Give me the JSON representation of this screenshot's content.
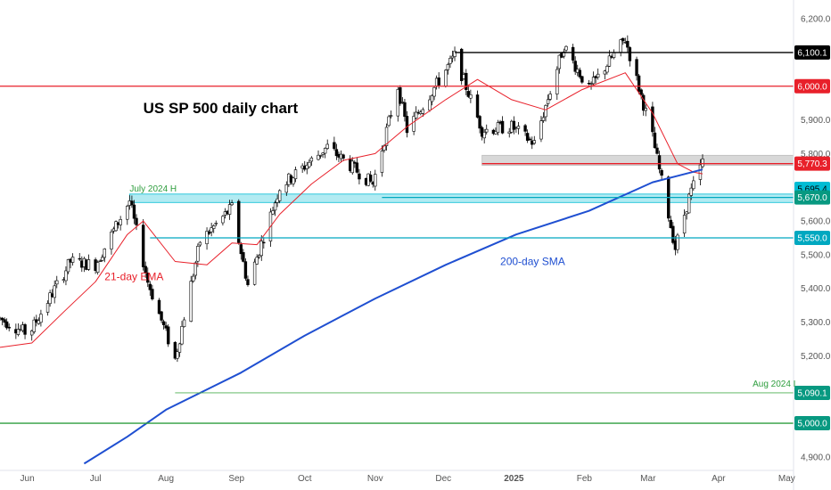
{
  "chart_data": {
    "type": "candlestick",
    "title": "US SP 500 daily chart",
    "xlabel": "",
    "ylabel": "",
    "ylim": [
      4860,
      6240
    ],
    "x_range": [
      "2024-05-20",
      "2025-05-04"
    ],
    "grid": false,
    "y_ticks": [
      {
        "value": 6200,
        "label": "6,200.0"
      },
      {
        "value": 6100,
        "label": "6,100.0"
      },
      {
        "value": 6000,
        "label": "6,000.0"
      },
      {
        "value": 5900,
        "label": "5,900.0"
      },
      {
        "value": 5800,
        "label": "5,800.0"
      },
      {
        "value": 5700,
        "label": "5,700.0"
      },
      {
        "value": 5600,
        "label": "5,600.0"
      },
      {
        "value": 5500,
        "label": "5,500.0"
      },
      {
        "value": 5400,
        "label": "5,400.0"
      },
      {
        "value": 5300,
        "label": "5,300.0"
      },
      {
        "value": 5200,
        "label": "5,200.0"
      },
      {
        "value": 5100,
        "label": "5,100.0"
      },
      {
        "value": 5000,
        "label": "5,000.0"
      },
      {
        "value": 4900,
        "label": "4,900.0"
      }
    ],
    "x_ticks": [
      {
        "date": "2024-06-01",
        "label": "Jun",
        "bold": false
      },
      {
        "date": "2024-07-01",
        "label": "Jul",
        "bold": false
      },
      {
        "date": "2024-08-01",
        "label": "Aug",
        "bold": false
      },
      {
        "date": "2024-09-01",
        "label": "Sep",
        "bold": false
      },
      {
        "date": "2024-10-01",
        "label": "Oct",
        "bold": false
      },
      {
        "date": "2024-11-01",
        "label": "Nov",
        "bold": false
      },
      {
        "date": "2024-12-01",
        "label": "Dec",
        "bold": false
      },
      {
        "date": "2025-01-01",
        "label": "2025",
        "bold": true
      },
      {
        "date": "2025-02-01",
        "label": "Feb",
        "bold": false
      },
      {
        "date": "2025-03-01",
        "label": "Mar",
        "bold": false
      },
      {
        "date": "2025-04-01",
        "label": "Apr",
        "bold": false
      },
      {
        "date": "2025-05-01",
        "label": "May",
        "bold": false
      }
    ],
    "levels": [
      {
        "value": 6100.1,
        "label": "6,100.1",
        "color": "#000000",
        "from": "2024-12-06",
        "badge_bg": "#000000",
        "badge_fg": "#ffffff"
      },
      {
        "value": 6000.0,
        "label": "6,000.0",
        "color": "#e8202a",
        "from": "2024-05-20",
        "badge_bg": "#e8202a",
        "badge_fg": "#ffffff"
      },
      {
        "value": 5770.3,
        "label": "5,770.3",
        "color": "#e8202a",
        "from": "2024-12-18",
        "badge_bg": "#e8202a",
        "badge_fg": "#ffffff"
      },
      {
        "value": 5695.4,
        "label": "5,695.4",
        "color": "#1a2c80",
        "from": null,
        "badge_bg": "#00bcd4",
        "badge_fg": "#000000"
      },
      {
        "value": 5670.0,
        "label": "5,670.0",
        "color": "#00a8c0",
        "from": "2024-11-04",
        "badge_bg": "#089981",
        "badge_fg": "#ffffff"
      },
      {
        "value": 5550.0,
        "label": "5,550.0",
        "color": "#00a8c0",
        "from": "2024-07-25",
        "badge_bg": "#00a8c0",
        "badge_fg": "#ffffff"
      },
      {
        "value": 5090.1,
        "label": "5,090.1",
        "color": "#4caf50",
        "from": "2024-08-05",
        "badge_bg": "#089981",
        "badge_fg": "#ffffff",
        "thin": true
      },
      {
        "value": 5000.0,
        "label": "5,000.0",
        "color": "#2e9e3e",
        "from": "2024-05-20",
        "badge_bg": "#089981",
        "badge_fg": "#ffffff"
      }
    ],
    "zones": [
      {
        "from_date": "2024-07-16",
        "y1": 5655,
        "y2": 5680,
        "fill": "#b2ebf2",
        "stroke": "#00bcd4"
      },
      {
        "from_date": "2024-12-18",
        "y1": 5765,
        "y2": 5795,
        "fill": "#d8d8d8",
        "stroke": "#bdbdbd"
      }
    ],
    "annotations": [
      {
        "text": "US SP 500 daily chart",
        "date": "2024-07-22",
        "value": 5920,
        "color": "#000000",
        "size": 17,
        "bold": true
      },
      {
        "text": "July 2024 H",
        "date": "2024-07-16",
        "value": 5688,
        "color": "#2e9e3e",
        "size": 10,
        "bold": false
      },
      {
        "text": "21-day EMA",
        "date": "2024-07-05",
        "value": 5425,
        "color": "#e8202a",
        "size": 12,
        "bold": false
      },
      {
        "text": "200-day SMA",
        "date": "2024-12-26",
        "value": 5470,
        "color": "#1f4fd1",
        "size": 12,
        "bold": false
      },
      {
        "text": "Aug 2024 L",
        "date": "2025-04-16",
        "value": 5108,
        "color": "#2e9e3e",
        "size": 10,
        "bold": false
      }
    ],
    "sma200_points": [
      [
        "2024-06-26",
        4880
      ],
      [
        "2024-07-15",
        4960
      ],
      [
        "2024-08-01",
        5040
      ],
      [
        "2024-09-03",
        5150
      ],
      [
        "2024-10-01",
        5260
      ],
      [
        "2024-11-01",
        5370
      ],
      [
        "2024-12-02",
        5470
      ],
      [
        "2025-01-02",
        5560
      ],
      [
        "2025-02-03",
        5630
      ],
      [
        "2025-03-03",
        5715
      ],
      [
        "2025-03-25",
        5753
      ]
    ],
    "ema21_points": [
      [
        "2024-05-20",
        5225
      ],
      [
        "2024-06-03",
        5238
      ],
      [
        "2024-06-17",
        5330
      ],
      [
        "2024-07-01",
        5420
      ],
      [
        "2024-07-15",
        5560
      ],
      [
        "2024-07-22",
        5600
      ],
      [
        "2024-08-05",
        5480
      ],
      [
        "2024-08-19",
        5470
      ],
      [
        "2024-08-30",
        5535
      ],
      [
        "2024-09-10",
        5530
      ],
      [
        "2024-09-20",
        5620
      ],
      [
        "2024-10-04",
        5710
      ],
      [
        "2024-10-18",
        5780
      ],
      [
        "2024-11-01",
        5800
      ],
      [
        "2024-11-15",
        5880
      ],
      [
        "2024-12-02",
        5960
      ],
      [
        "2024-12-16",
        6020
      ],
      [
        "2024-12-31",
        5960
      ],
      [
        "2025-01-15",
        5930
      ],
      [
        "2025-01-31",
        5990
      ],
      [
        "2025-02-19",
        6040
      ],
      [
        "2025-03-03",
        5920
      ],
      [
        "2025-03-14",
        5770
      ],
      [
        "2025-03-21",
        5745
      ],
      [
        "2025-03-25",
        5740
      ]
    ],
    "price_path": [
      [
        "2024-05-20",
        5310
      ],
      [
        "2024-05-31",
        5270
      ],
      [
        "2024-06-03",
        5280
      ],
      [
        "2024-06-20",
        5480
      ],
      [
        "2024-07-01",
        5470
      ],
      [
        "2024-07-16",
        5660
      ],
      [
        "2024-07-24",
        5420
      ],
      [
        "2024-08-05",
        5190
      ],
      [
        "2024-08-16",
        5540
      ],
      [
        "2024-08-30",
        5640
      ],
      [
        "2024-09-06",
        5410
      ],
      [
        "2024-09-20",
        5700
      ],
      [
        "2024-10-11",
        5820
      ],
      [
        "2024-10-31",
        5710
      ],
      [
        "2024-11-11",
        6000
      ],
      [
        "2024-11-15",
        5870
      ],
      [
        "2024-12-06",
        6090
      ],
      [
        "2024-12-18",
        5870
      ],
      [
        "2024-12-31",
        5880
      ],
      [
        "2025-01-10",
        5830
      ],
      [
        "2025-01-23",
        6120
      ],
      [
        "2025-02-03",
        5990
      ],
      [
        "2025-02-19",
        6140
      ],
      [
        "2025-03-03",
        5850
      ],
      [
        "2025-03-13",
        5520
      ],
      [
        "2025-03-19",
        5670
      ],
      [
        "2025-03-25",
        5775
      ]
    ],
    "candle_colors": {
      "up": "#089981",
      "down": "#f23645"
    },
    "candle_style": {
      "body": "#ffffff",
      "outline": "#000000"
    }
  }
}
